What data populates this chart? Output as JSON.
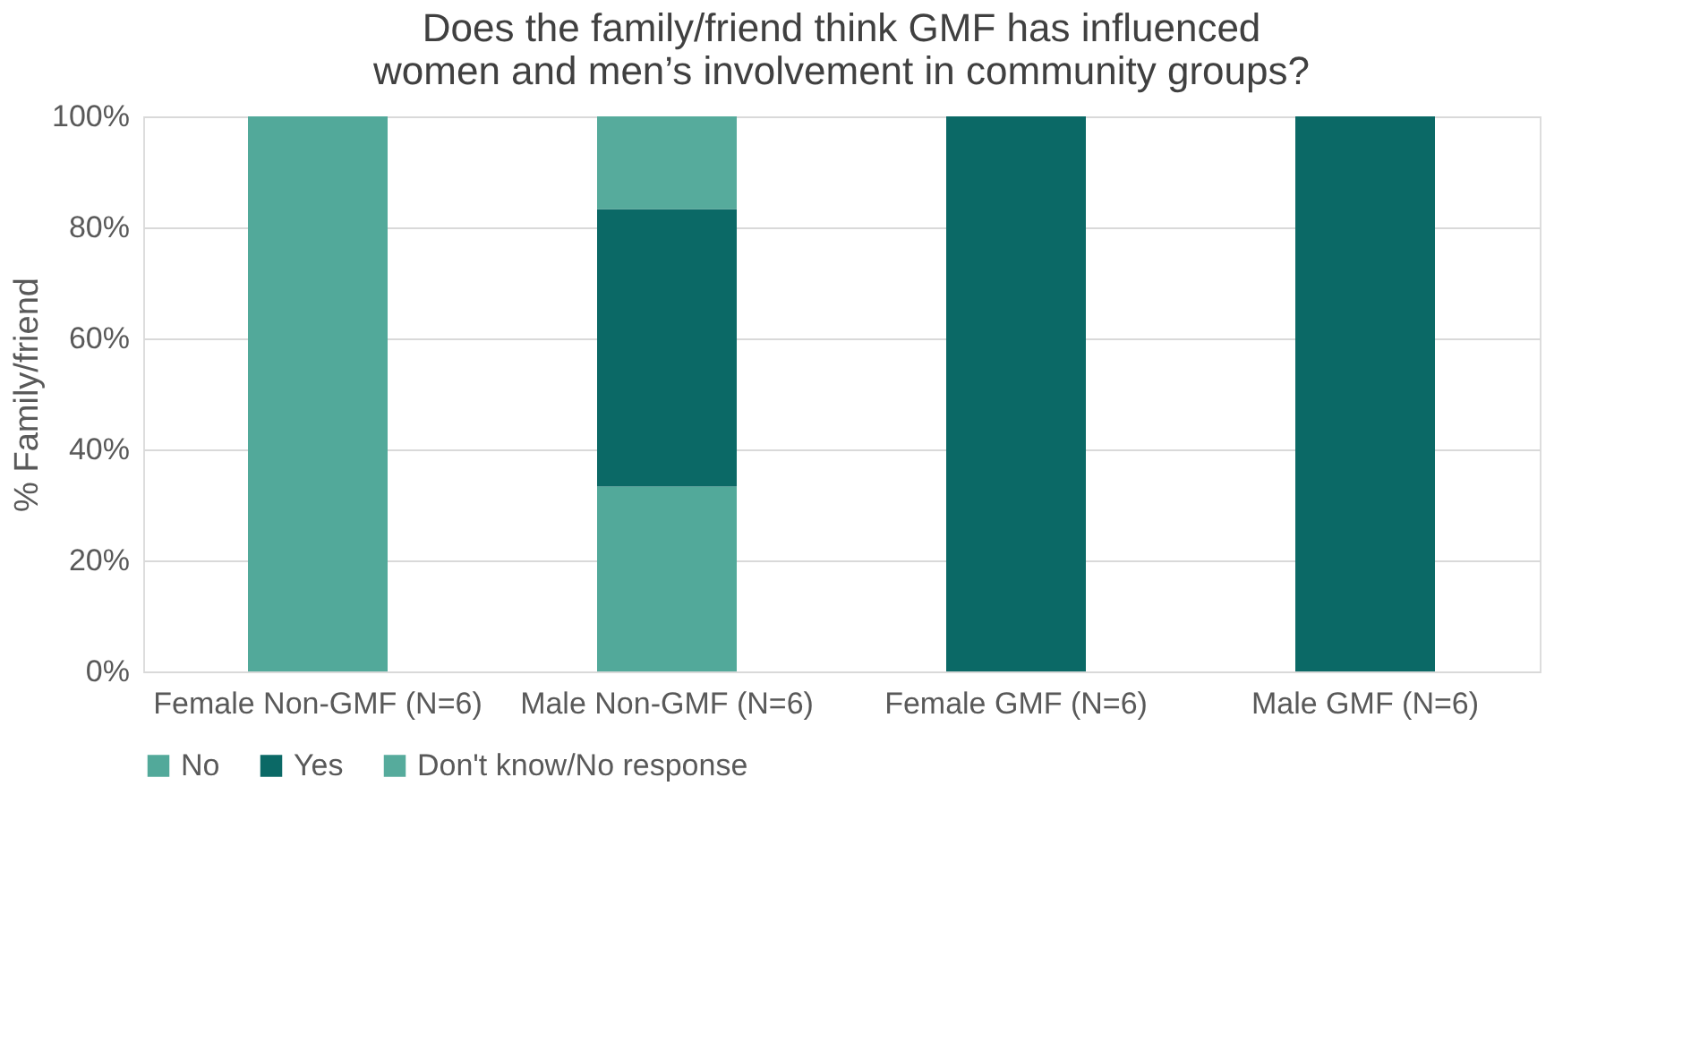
{
  "chart_data": {
    "type": "bar",
    "stacked": true,
    "title": "Does the family/friend think GMF has influenced women and men’s involvement in community groups?",
    "ylabel": "% Family/friend",
    "categories": [
      "Female Non-GMF (N=6)",
      "Male Non-GMF (N=6)",
      "Female GMF  (N=6)",
      "Male GMF  (N=6)"
    ],
    "series": [
      {
        "name": "No",
        "color": "#52a99a",
        "values": [
          100,
          33.3,
          0,
          0
        ]
      },
      {
        "name": "Yes",
        "color": "#0b6966",
        "values": [
          0,
          50,
          100,
          100
        ]
      },
      {
        "name": "Don't know/No response",
        "color": "#56ab9c",
        "values": [
          0,
          16.7,
          0,
          0
        ]
      }
    ],
    "ylim": [
      0,
      100
    ],
    "yticks": [
      {
        "value": 0,
        "label": "0%"
      },
      {
        "value": 20,
        "label": "20%"
      },
      {
        "value": 40,
        "label": "40%"
      },
      {
        "value": 60,
        "label": "60%"
      },
      {
        "value": 80,
        "label": "80%"
      },
      {
        "value": 100,
        "label": "100%"
      }
    ],
    "grid": "y",
    "legend": "bottom"
  }
}
